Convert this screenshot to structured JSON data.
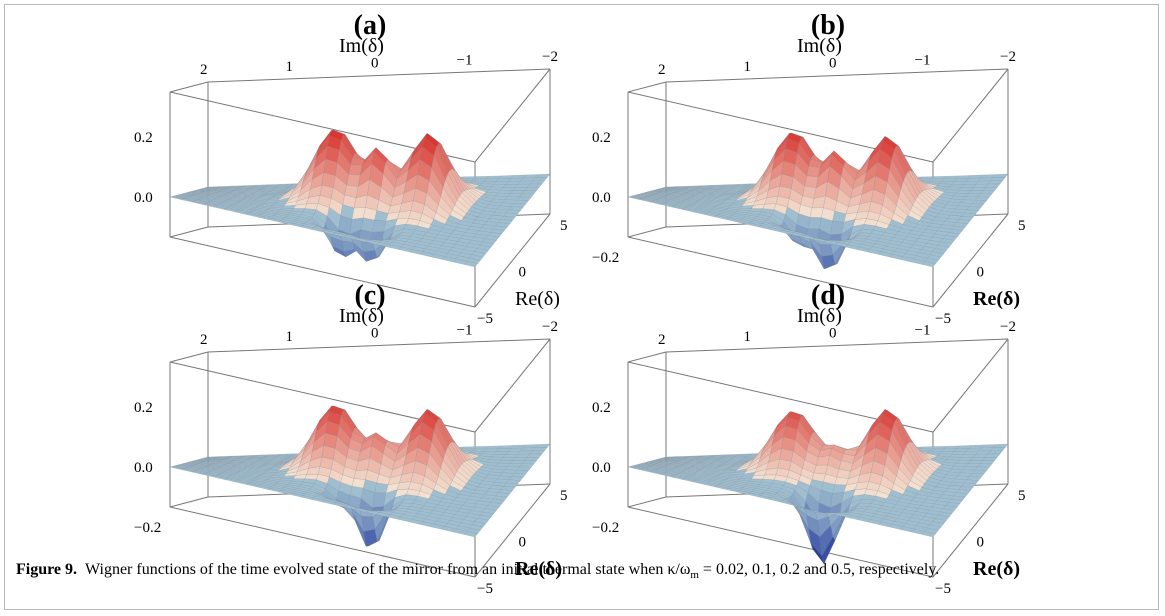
{
  "panels": [
    {
      "label": "(a)",
      "im_axis_label": "Im(δ)",
      "re_axis_label": "Re(δ)",
      "re_label_bold": false,
      "im_ticks": [
        "2",
        "1",
        "0",
        "−1",
        "−2"
      ],
      "re_ticks": [
        "5",
        "0",
        "−5"
      ],
      "z_ticks": [
        "0.2",
        "0.0"
      ],
      "surface": {
        "peak_left": 0.24,
        "peak_right": 0.24,
        "middle_peak": 0.17,
        "dips": [
          -0.12,
          -0.12
        ]
      }
    },
    {
      "label": "(b)",
      "im_axis_label": "Im(δ)",
      "re_axis_label": "Re(δ)",
      "re_label_bold": true,
      "im_ticks": [
        "2",
        "1",
        "0",
        "−1",
        "−2"
      ],
      "re_ticks": [
        "5",
        "0",
        "−5"
      ],
      "z_ticks": [
        "0.2",
        "0.0",
        "−0.2"
      ],
      "surface": {
        "peak_left": 0.23,
        "peak_right": 0.23,
        "middle_peak": 0.16,
        "dips": [
          -0.08,
          -0.15
        ]
      }
    },
    {
      "label": "(c)",
      "im_axis_label": "Im(δ)",
      "re_axis_label": "Re(δ)",
      "re_label_bold": true,
      "im_ticks": [
        "2",
        "1",
        "0",
        "−1",
        "−2"
      ],
      "re_ticks": [
        "5",
        "0",
        "−5"
      ],
      "z_ticks": [
        "0.2",
        "0.0",
        "−0.2"
      ],
      "surface": {
        "peak_left": 0.22,
        "peak_right": 0.22,
        "middle_peak": 0.12,
        "dips": [
          -0.05,
          -0.18
        ]
      }
    },
    {
      "label": "(d)",
      "im_axis_label": "Im(δ)",
      "re_axis_label": "Re(δ)",
      "re_label_bold": true,
      "im_ticks": [
        "2",
        "1",
        "0",
        "−1",
        "−2"
      ],
      "re_ticks": [
        "5",
        "0",
        "−5"
      ],
      "z_ticks": [
        "0.2",
        "0.0",
        "−0.2"
      ],
      "surface": {
        "peak_left": 0.2,
        "peak_right": 0.22,
        "middle_peak": 0.08,
        "dips": [
          -0.22
        ]
      }
    }
  ],
  "caption": {
    "figure_label": "Figure 9.",
    "text": "Wigner functions of the time evolved state of the mirror from an initial thermal state when κ/ω",
    "subscript": "m",
    "text_end": " = 0.02, 0.1, 0.2 and 0.5, respectively."
  },
  "colors": {
    "high": "#d9302b",
    "mid": "#f4e9d8",
    "flat": "#9fbfd0",
    "low": "#2a3f9f",
    "box": "#777777"
  }
}
